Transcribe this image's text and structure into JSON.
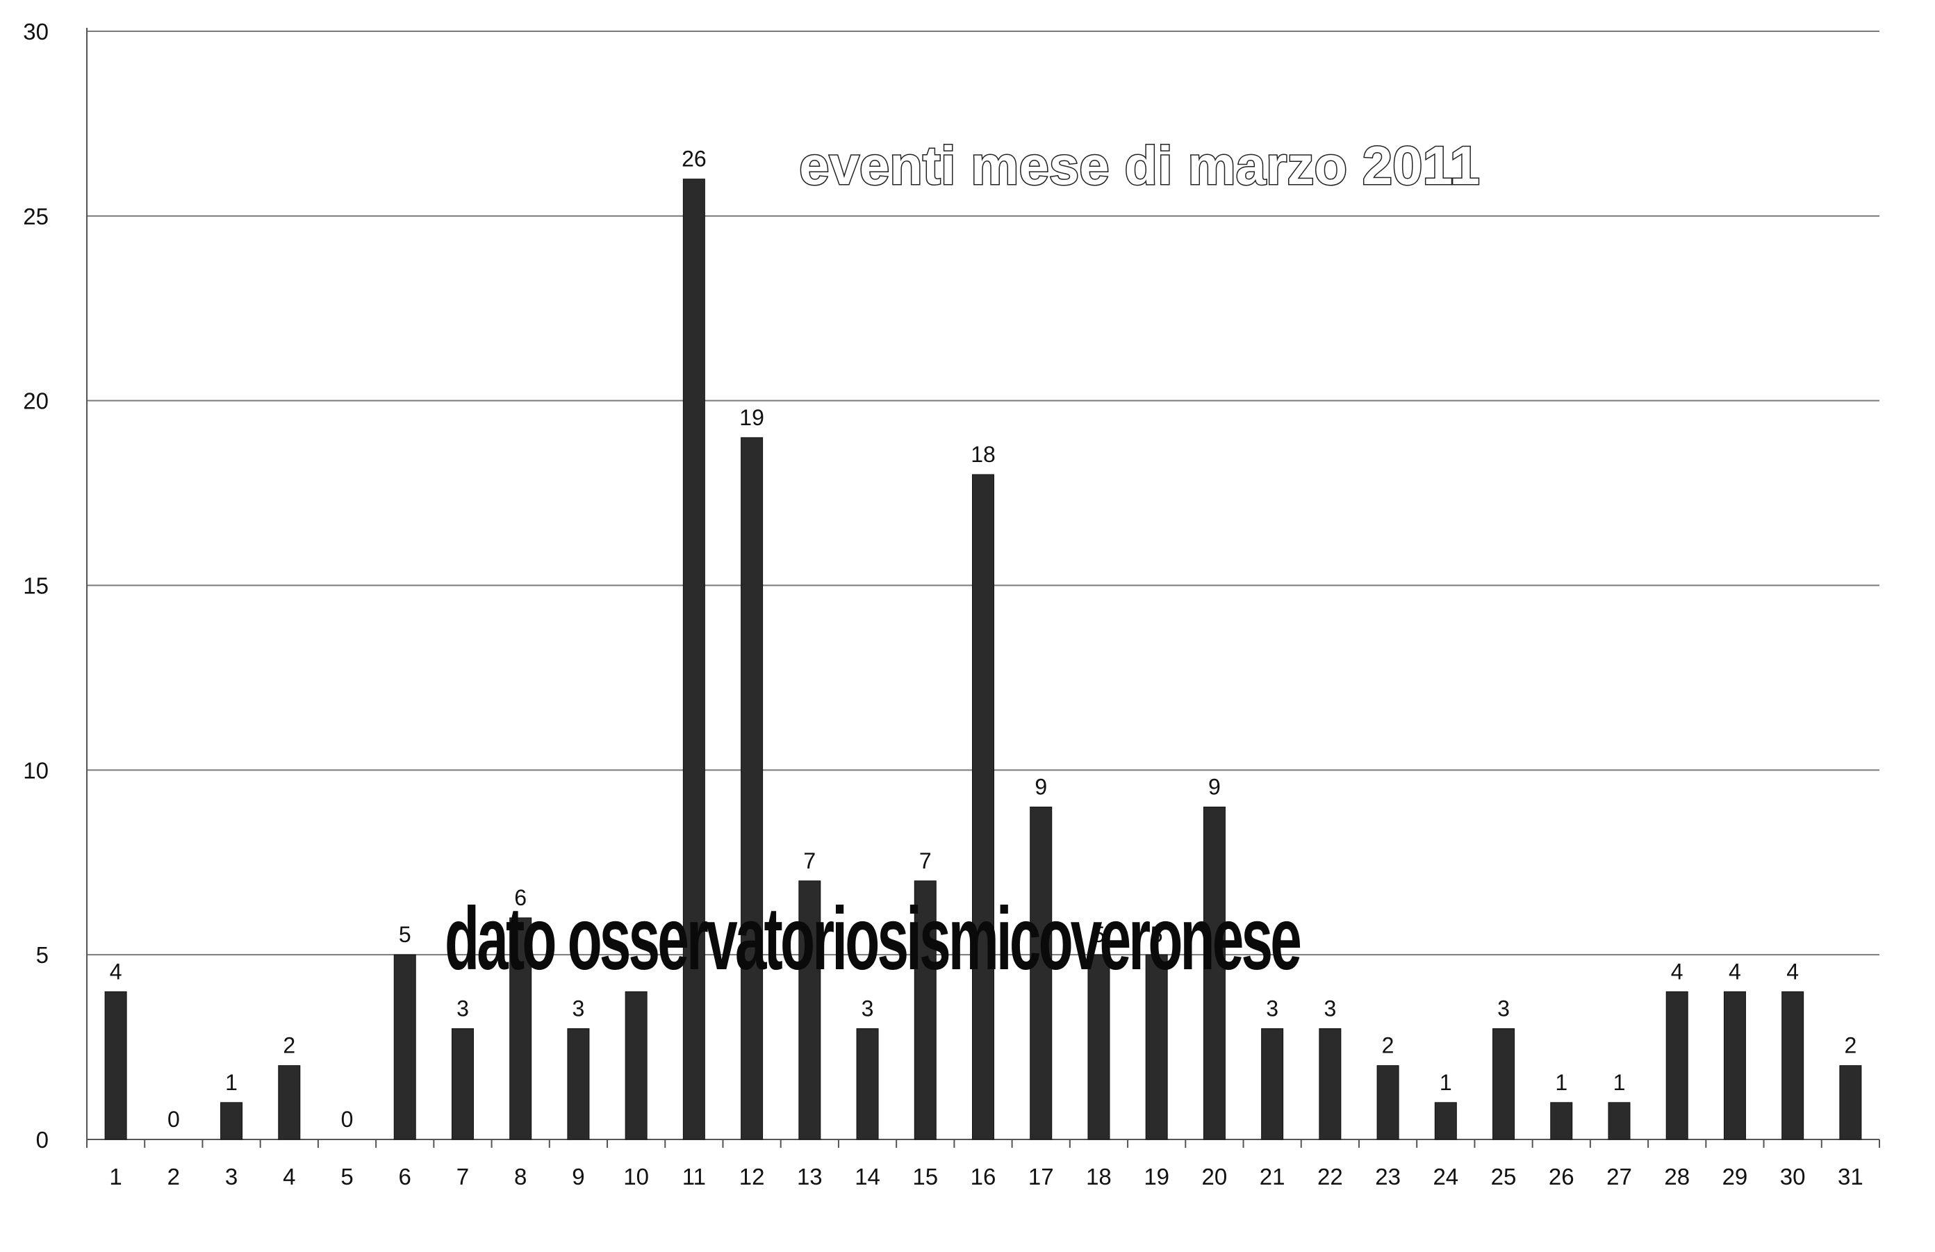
{
  "chart_data": {
    "type": "bar",
    "title": "eventi mese di marzo 2011",
    "annotation": "dato osservatoriosismicoveronese",
    "xlabel": "",
    "ylabel": "",
    "ylim": [
      0,
      30
    ],
    "yticks": [
      "0",
      "5",
      "10",
      "15",
      "20",
      "25",
      "30"
    ],
    "grid": true,
    "categories": [
      "1",
      "2",
      "3",
      "4",
      "5",
      "6",
      "7",
      "8",
      "9",
      "10",
      "11",
      "12",
      "13",
      "14",
      "15",
      "16",
      "17",
      "18",
      "19",
      "20",
      "21",
      "22",
      "23",
      "24",
      "25",
      "26",
      "27",
      "28",
      "29",
      "30",
      "31"
    ],
    "series": [
      {
        "values": [
          4,
          0,
          1,
          2,
          0,
          5,
          3,
          6,
          3,
          4,
          26,
          19,
          7,
          3,
          7,
          18,
          9,
          5,
          5,
          9,
          3,
          3,
          2,
          1,
          3,
          1,
          1,
          4,
          4,
          4,
          2
        ],
        "labels": [
          "4",
          "0",
          "1",
          "2",
          "0",
          "5",
          "3",
          "6",
          "3",
          "",
          "26",
          "19",
          "7",
          "3",
          "7",
          "18",
          "9",
          "5",
          "5",
          "9",
          "3",
          "3",
          "2",
          "1",
          "3",
          "1",
          "1",
          "4",
          "4",
          "4",
          "2"
        ],
        "color": "#2b2b2b"
      }
    ]
  }
}
